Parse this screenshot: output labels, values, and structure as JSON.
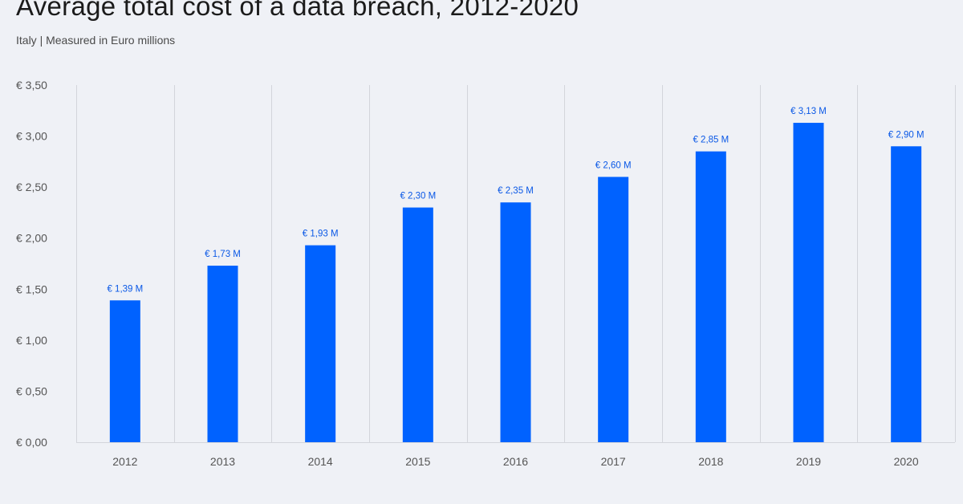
{
  "header": {
    "title": "Average total cost of a data breach, 2012-2020",
    "subtitle": "Italy | Measured in Euro millions"
  },
  "colors": {
    "background": "#eff1f6",
    "bar": "#0062ff",
    "data_label": "#0a58e6",
    "gridline": "#d3d5db"
  },
  "chart_data": {
    "type": "bar",
    "title": "Average total cost of a data breach, 2012-2020",
    "subtitle": "Italy | Measured in Euro millions",
    "xlabel": "",
    "ylabel": "",
    "categories": [
      "2012",
      "2013",
      "2014",
      "2015",
      "2016",
      "2017",
      "2018",
      "2019",
      "2020"
    ],
    "values": [
      1.39,
      1.73,
      1.93,
      2.3,
      2.35,
      2.6,
      2.85,
      3.13,
      2.9
    ],
    "data_labels": [
      "€ 1,39 M",
      "€ 1,73 M",
      "€ 1,93 M",
      "€ 2,30 M",
      "€ 2,35 M",
      "€ 2,60 M",
      "€ 2,85 M",
      "€ 3,13 M",
      "€ 2,90 M"
    ],
    "ylim": [
      0,
      3.5
    ],
    "yticks": [
      0,
      0.5,
      1.0,
      1.5,
      2.0,
      2.5,
      3.0,
      3.5
    ],
    "ytick_labels": [
      "€ 0,00",
      "€ 0,50",
      "€ 1,00",
      "€ 1,50",
      "€ 2,00",
      "€ 2,50",
      "€ 3,00",
      "€ 3,50"
    ],
    "grid": "vertical separators between categories",
    "legend": "none"
  }
}
